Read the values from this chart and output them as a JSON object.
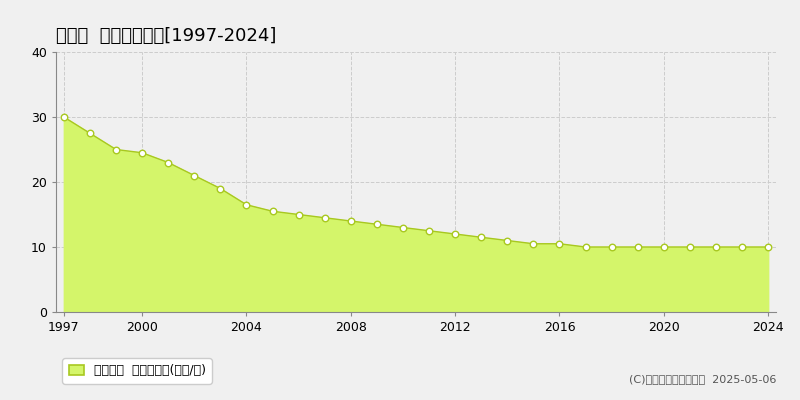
{
  "title": "越生町  基準地価推移[1997-2024]",
  "years": [
    1997,
    1998,
    1999,
    2000,
    2001,
    2002,
    2003,
    2004,
    2005,
    2006,
    2007,
    2008,
    2009,
    2010,
    2011,
    2012,
    2013,
    2014,
    2015,
    2016,
    2017,
    2018,
    2019,
    2020,
    2021,
    2022,
    2023,
    2024
  ],
  "values": [
    30.0,
    27.5,
    25.0,
    24.5,
    23.0,
    21.0,
    19.0,
    16.5,
    15.5,
    15.0,
    14.5,
    14.0,
    13.5,
    13.0,
    12.5,
    12.0,
    11.5,
    11.0,
    10.5,
    10.5,
    10.0,
    10.0,
    10.0,
    10.0,
    10.0,
    10.0,
    10.0,
    10.0
  ],
  "fill_color": "#d4f56a",
  "line_color": "#a8c820",
  "marker_color": "#ffffff",
  "marker_edge_color": "#a8c820",
  "background_color": "#f0f0f0",
  "plot_bg_color": "#f0f0f0",
  "grid_color": "#cccccc",
  "ylim": [
    0,
    40
  ],
  "yticks": [
    0,
    10,
    20,
    30,
    40
  ],
  "xlim_start": 1997,
  "xlim_end": 2024,
  "xticks": [
    1997,
    2000,
    2004,
    2008,
    2012,
    2016,
    2020,
    2024
  ],
  "legend_label": "基準地価  平均坪単価(万円/坪)",
  "copyright_text": "(C)土地価格ドットコム  2025-05-06",
  "title_fontsize": 13,
  "axis_fontsize": 9,
  "legend_fontsize": 9,
  "copyright_fontsize": 8
}
